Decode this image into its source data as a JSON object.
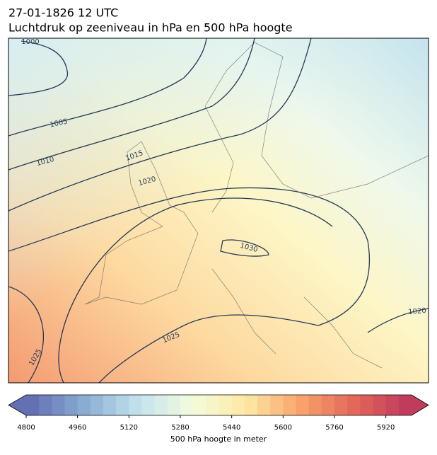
{
  "title": "27-01-1826 12 UTC",
  "subtitle": "Luchtdruk op zeeniveau in hPa en 500 hPa hoogte",
  "contour_labels": [
    "1000",
    "1005",
    "1010",
    "1015",
    "1020",
    "1030",
    "1025",
    "1025",
    "1020"
  ],
  "colorbar": {
    "label": "500 hPa hoogte in meter",
    "lim": [
      4800,
      6000
    ],
    "step": 40,
    "ticks": [
      4800,
      4960,
      5120,
      5280,
      5440,
      5600,
      5760,
      5920
    ],
    "colors": [
      "#6470b4",
      "#8aaed4",
      "#c4e3ee",
      "#f4fbdc",
      "#fde9a6",
      "#f9a56c",
      "#e46a5a",
      "#c03c5c"
    ]
  }
}
